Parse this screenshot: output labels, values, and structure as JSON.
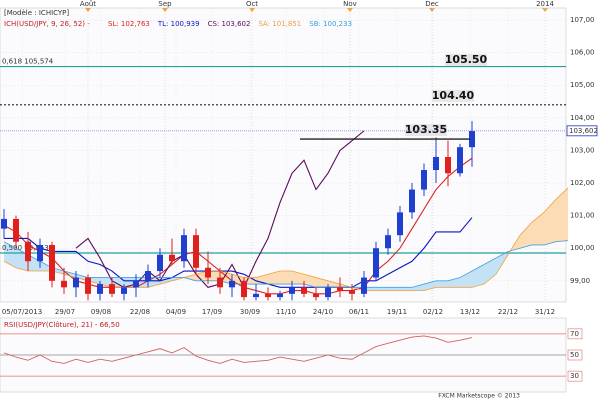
{
  "chart_data": {
    "type": "candlestick",
    "model_label": "[Modèle : ICHICYP]",
    "indicator_label": "ICH(USD/JPY, 9, 26, 52) -",
    "x_labels": [
      "05/07/2013",
      "29/07",
      "09/08",
      "22/08",
      "04/09",
      "17/09",
      "30/09",
      "11/10",
      "24/10",
      "06/11",
      "19/11",
      "02/12",
      "13/12",
      "22/12",
      "31/12"
    ],
    "top_labels": [
      "Août",
      "Sep",
      "Oct",
      "Nov",
      "Dec",
      "2014"
    ],
    "ylim": [
      98.35,
      107.37
    ],
    "yticks": [
      {
        "value": 99,
        "label": "99,00"
      },
      {
        "value": 100,
        "label": "100,00"
      },
      {
        "value": 101,
        "label": "101,00"
      },
      {
        "value": 102,
        "label": "102,00"
      },
      {
        "value": 103,
        "label": "103,00"
      },
      {
        "value": 104,
        "label": "104,00"
      },
      {
        "value": 105,
        "label": "105,00"
      },
      {
        "value": 106,
        "label": "106,00"
      },
      {
        "value": 107,
        "label": "107,00"
      }
    ],
    "up_color": "#1f3fd0",
    "down_color": "#e0201c",
    "open": [
      100.6,
      100.9,
      100.2,
      99.6,
      100.1,
      99.0,
      98.8,
      99.1,
      98.6,
      98.9,
      98.6,
      98.8,
      99.0,
      99.3,
      99.8,
      99.6,
      100.4,
      99.4,
      99.1,
      98.8,
      99.0,
      98.5,
      98.6,
      98.5,
      98.6,
      98.8,
      98.6,
      98.5,
      98.8,
      98.7,
      98.6,
      99.1,
      100.0,
      100.4,
      101.1,
      101.8,
      102.4,
      102.8,
      102.3,
      103.1,
      null,
      null,
      null,
      null,
      null,
      null,
      null,
      null
    ],
    "high": [
      101.2,
      101.0,
      100.5,
      100.3,
      100.2,
      99.4,
      99.3,
      99.2,
      99.0,
      99.1,
      98.9,
      99.2,
      99.5,
      100.0,
      100.3,
      100.6,
      100.6,
      99.9,
      99.4,
      99.2,
      99.1,
      98.9,
      98.8,
      98.7,
      99.0,
      99.0,
      98.8,
      98.9,
      99.1,
      98.9,
      99.3,
      100.2,
      100.6,
      101.3,
      102.0,
      102.6,
      103.4,
      103.3,
      103.2,
      103.9,
      null,
      null,
      null,
      null,
      null,
      null,
      null,
      null
    ],
    "low": [
      100.3,
      100.0,
      99.3,
      99.4,
      98.8,
      98.6,
      98.5,
      98.4,
      98.4,
      98.5,
      98.4,
      98.5,
      98.8,
      99.1,
      99.5,
      99.4,
      99.2,
      98.9,
      98.6,
      98.5,
      98.4,
      98.4,
      98.4,
      98.4,
      98.4,
      98.5,
      98.4,
      98.4,
      98.5,
      98.4,
      98.5,
      99.0,
      99.8,
      100.2,
      100.9,
      101.6,
      102.0,
      101.9,
      102.2,
      102.5,
      null,
      null,
      null,
      null,
      null,
      null,
      null,
      null
    ],
    "close": [
      100.9,
      100.2,
      99.6,
      100.1,
      99.0,
      98.8,
      99.1,
      98.6,
      98.9,
      98.6,
      98.8,
      99.0,
      99.3,
      99.8,
      99.6,
      100.4,
      99.4,
      99.1,
      98.8,
      99.0,
      98.5,
      98.6,
      98.5,
      98.6,
      98.8,
      98.6,
      98.5,
      98.8,
      98.7,
      98.6,
      99.1,
      100.0,
      100.4,
      101.1,
      101.8,
      102.4,
      102.8,
      102.3,
      103.1,
      103.6,
      null,
      null,
      null,
      null,
      null,
      null,
      null,
      null
    ],
    "series": [
      {
        "name": "SL: 102,763",
        "color": "#e0201c",
        "values": [
          100.7,
          100.5,
          100.1,
          99.9,
          99.7,
          99.3,
          99.0,
          98.9,
          98.8,
          98.8,
          98.8,
          98.8,
          99.0,
          99.2,
          99.5,
          99.8,
          99.9,
          99.6,
          99.3,
          99.0,
          98.8,
          98.7,
          98.6,
          98.6,
          98.7,
          98.7,
          98.6,
          98.6,
          98.7,
          98.7,
          98.8,
          99.3,
          99.6,
          100.0,
          100.6,
          101.2,
          101.8,
          102.2,
          102.5,
          102.76,
          null,
          null,
          null,
          null,
          null,
          null,
          null,
          null
        ]
      },
      {
        "name": "TL: 100,939",
        "color": "#0a14c8",
        "values": [
          100.3,
          100.3,
          100.3,
          100.0,
          99.9,
          99.9,
          99.9,
          99.6,
          99.5,
          99.3,
          99.0,
          99.0,
          99.0,
          99.0,
          99.1,
          99.3,
          99.3,
          99.3,
          99.3,
          99.3,
          99.2,
          99.0,
          98.9,
          98.8,
          98.8,
          98.8,
          98.8,
          98.8,
          98.8,
          98.8,
          99.0,
          99.0,
          99.2,
          99.4,
          99.6,
          100.0,
          100.5,
          100.5,
          100.5,
          100.94,
          null,
          null,
          null,
          null,
          null,
          null,
          null,
          null
        ]
      },
      {
        "name": "CS: 103,602",
        "color": "#5a0a5a",
        "values": [
          null,
          null,
          null,
          null,
          null,
          null,
          100.0,
          100.3,
          99.7,
          99.0,
          98.8,
          98.9,
          99.3,
          99.0,
          99.6,
          99.8,
          99.2,
          98.8,
          98.9,
          99.5,
          98.8,
          99.6,
          100.3,
          101.4,
          102.3,
          102.7,
          101.8,
          102.3,
          103.0,
          103.3,
          103.6,
          null,
          null,
          null,
          null,
          null,
          null,
          null,
          null,
          null,
          null,
          null,
          null,
          null,
          null,
          null,
          null,
          null
        ]
      },
      {
        "name": "SA: 101,851",
        "color": "#f0a040",
        "values": [
          99.6,
          99.4,
          99.3,
          99.3,
          99.3,
          99.2,
          99.1,
          99.0,
          98.9,
          98.8,
          98.8,
          98.8,
          98.8,
          98.9,
          99.0,
          99.1,
          99.2,
          99.3,
          99.3,
          99.2,
          99.1,
          99.1,
          99.2,
          99.3,
          99.3,
          99.2,
          99.1,
          99.0,
          98.9,
          98.8,
          98.7,
          98.7,
          98.7,
          98.7,
          98.7,
          98.7,
          98.8,
          98.8,
          98.8,
          98.8,
          98.9,
          99.2,
          99.8,
          100.4,
          100.8,
          101.1,
          101.5,
          101.85
        ]
      },
      {
        "name": "SB: 100,233",
        "color": "#40a0e0",
        "values": [
          100.2,
          100.0,
          99.8,
          99.6,
          99.4,
          99.3,
          99.2,
          99.1,
          99.1,
          99.1,
          99.1,
          99.1,
          99.1,
          99.1,
          99.1,
          99.1,
          99.0,
          99.0,
          99.0,
          98.9,
          98.9,
          98.9,
          98.9,
          98.9,
          98.9,
          98.9,
          98.8,
          98.8,
          98.8,
          98.8,
          98.8,
          98.8,
          98.8,
          98.8,
          98.8,
          98.9,
          99.0,
          99.0,
          99.1,
          99.3,
          99.5,
          99.7,
          99.9,
          100.0,
          100.1,
          100.1,
          100.2,
          100.233
        ]
      }
    ],
    "levels": [
      {
        "value": 105.574,
        "label": "0,618 105,574",
        "color": "#20a0a0"
      },
      {
        "value": 99.853,
        "label": "0,500 99,853",
        "color": "#20a0a0"
      }
    ],
    "annotations": [
      {
        "value": 105.5,
        "label": "105.50",
        "style": "none"
      },
      {
        "value": 104.4,
        "label": "104.40",
        "style": "dashed"
      },
      {
        "value": 103.35,
        "label": "103.35",
        "style": "solid"
      }
    ],
    "last_price": {
      "value": 103.602,
      "label": "103,602"
    },
    "rsi": {
      "title": "RSI(USD/JPY(Clôture), 21) - 66,50",
      "ylim": [
        15,
        85
      ],
      "yticks": [
        70,
        50,
        30
      ],
      "color": "#d06060",
      "values": [
        52,
        48,
        45,
        50,
        44,
        42,
        46,
        43,
        46,
        44,
        47,
        50,
        53,
        56,
        52,
        57,
        49,
        45,
        42,
        46,
        43,
        44,
        45,
        48,
        46,
        44,
        47,
        50,
        47,
        46,
        52,
        58,
        61,
        64,
        67,
        68,
        66,
        62,
        64,
        66.5,
        null,
        null,
        null,
        null,
        null,
        null,
        null,
        null
      ]
    },
    "footer": "FXCM Marketscope © 2013"
  }
}
